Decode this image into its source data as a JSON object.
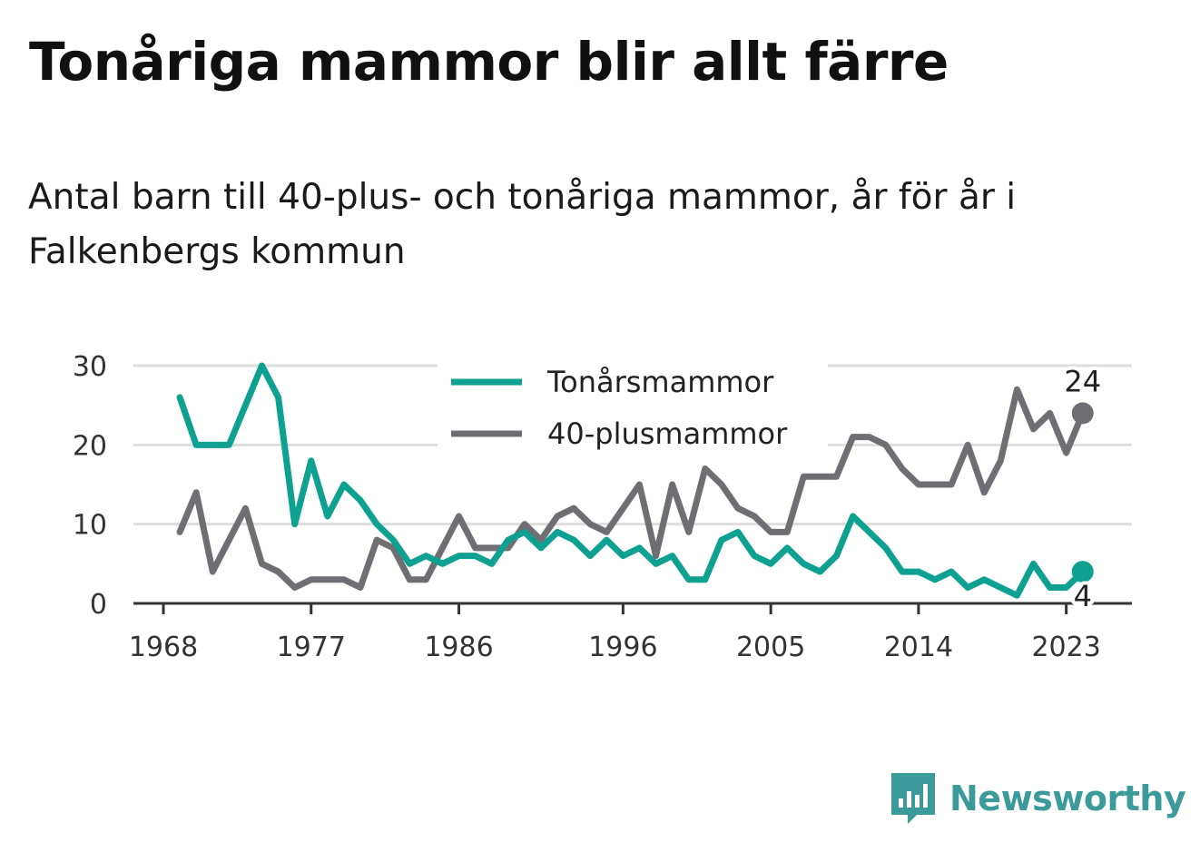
{
  "title": "Tonåriga mammor blir allt färre",
  "subtitle": "Antal barn till 40-plus- och tonåriga mammor, år för år i Falkenbergs kommun",
  "brand": {
    "name": "Newsworthy",
    "icon": "newsworthy-logo-icon",
    "color": "#3d9a9a"
  },
  "chart_data": {
    "type": "line",
    "x": [
      1969,
      1970,
      1971,
      1972,
      1973,
      1974,
      1975,
      1976,
      1977,
      1978,
      1979,
      1980,
      1981,
      1982,
      1983,
      1984,
      1985,
      1986,
      1987,
      1988,
      1989,
      1990,
      1991,
      1992,
      1993,
      1994,
      1995,
      1996,
      1997,
      1998,
      1999,
      2000,
      2001,
      2002,
      2003,
      2004,
      2005,
      2006,
      2007,
      2008,
      2009,
      2010,
      2011,
      2012,
      2013,
      2014,
      2015,
      2016,
      2017,
      2018,
      2019,
      2020,
      2021,
      2022,
      2023,
      2024
    ],
    "series": [
      {
        "name": "Tonårsmammor",
        "color": "#0ea090",
        "values": [
          26,
          20,
          20,
          20,
          25,
          30,
          26,
          10,
          18,
          11,
          15,
          13,
          10,
          8,
          5,
          6,
          5,
          6,
          6,
          5,
          8,
          9,
          7,
          9,
          8,
          6,
          8,
          6,
          7,
          5,
          6,
          3,
          3,
          8,
          9,
          6,
          5,
          7,
          5,
          4,
          6,
          11,
          9,
          7,
          4,
          4,
          3,
          4,
          2,
          3,
          2,
          1,
          5,
          2,
          2,
          4
        ],
        "end_label": "4"
      },
      {
        "name": "40-plusmammor",
        "color": "#6e6e73",
        "values": [
          9,
          14,
          4,
          8,
          12,
          5,
          4,
          2,
          3,
          3,
          3,
          2,
          8,
          7,
          3,
          3,
          7,
          11,
          7,
          7,
          7,
          10,
          8,
          11,
          12,
          10,
          9,
          12,
          15,
          6,
          15,
          9,
          17,
          15,
          12,
          11,
          9,
          9,
          16,
          16,
          16,
          21,
          21,
          20,
          17,
          15,
          15,
          15,
          20,
          14,
          18,
          27,
          22,
          24,
          19,
          24
        ],
        "end_label": "24"
      }
    ],
    "xticks": [
      1968,
      1977,
      1986,
      1996,
      2005,
      2014,
      2023
    ],
    "yticks": [
      0,
      10,
      20,
      30
    ],
    "xlim": [
      1968,
      2027
    ],
    "ylim": [
      0,
      30
    ],
    "grid": true,
    "legend_position": "top-center"
  }
}
